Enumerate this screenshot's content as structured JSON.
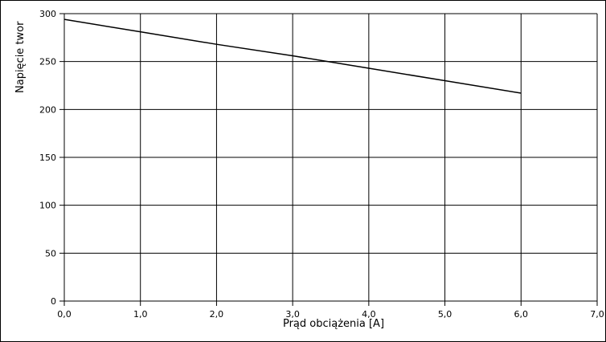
{
  "chart_data": {
    "type": "line",
    "x_label": "Prąd obciążenia [A]",
    "y_label": "Napięcie twor",
    "x": [
      0,
      1,
      2,
      3,
      4,
      5,
      6
    ],
    "series": [
      {
        "name": "Napięcie",
        "color": "#000000",
        "values": [
          294,
          281,
          268,
          256,
          243,
          230,
          217
        ]
      }
    ],
    "xlim": [
      0,
      7
    ],
    "xticks": [
      {
        "value": 0,
        "label": "0,0"
      },
      {
        "value": 1,
        "label": "1,0"
      },
      {
        "value": 2,
        "label": "2,0"
      },
      {
        "value": 3,
        "label": "3,0"
      },
      {
        "value": 4,
        "label": "4,0"
      },
      {
        "value": 5,
        "label": "5,0"
      },
      {
        "value": 6,
        "label": "6,0"
      },
      {
        "value": 7,
        "label": "7,0"
      }
    ],
    "ylim": [
      0,
      300
    ],
    "yticks": [
      0,
      50,
      100,
      150,
      200,
      250,
      300
    ],
    "grid": true
  }
}
